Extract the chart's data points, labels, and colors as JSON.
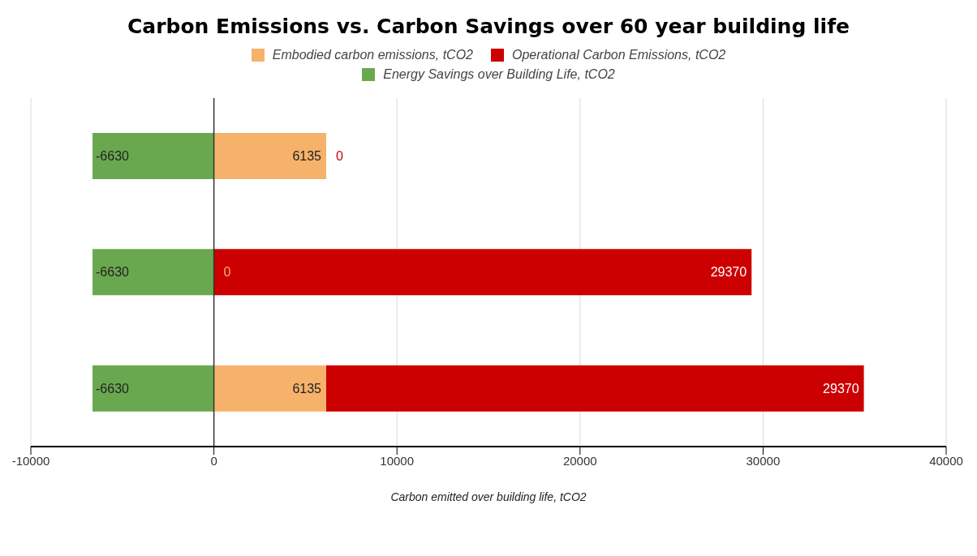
{
  "chart_data": {
    "type": "bar",
    "orientation": "horizontal",
    "stacked": true,
    "title": "Carbon Emissions vs. Carbon Savings over 60 year building life",
    "xlabel": "Carbon emitted over building life, tCO2",
    "categories": [
      null,
      null,
      null
    ],
    "series": [
      {
        "name": "Embodied carbon emissions, tCO2",
        "color": "#f6b26b",
        "values": [
          6135,
          0,
          6135
        ]
      },
      {
        "name": "Operational Carbon Emissions, tCO2",
        "color": "#cc0000",
        "values": [
          0,
          29370,
          29370
        ]
      },
      {
        "name": "Energy Savings over Building Life, tCO2",
        "color": "#6aa84f",
        "values": [
          -6630,
          -6630,
          -6630
        ]
      }
    ],
    "xlim": [
      -10000,
      40000
    ],
    "xticks": [
      -10000,
      0,
      10000,
      20000,
      30000,
      40000
    ],
    "grid": "x",
    "legend": "top",
    "data_labels": true,
    "tick_labels": "x",
    "ref_lines": [
      {
        "axis": "x",
        "value": 0,
        "color": "#333333"
      }
    ]
  }
}
